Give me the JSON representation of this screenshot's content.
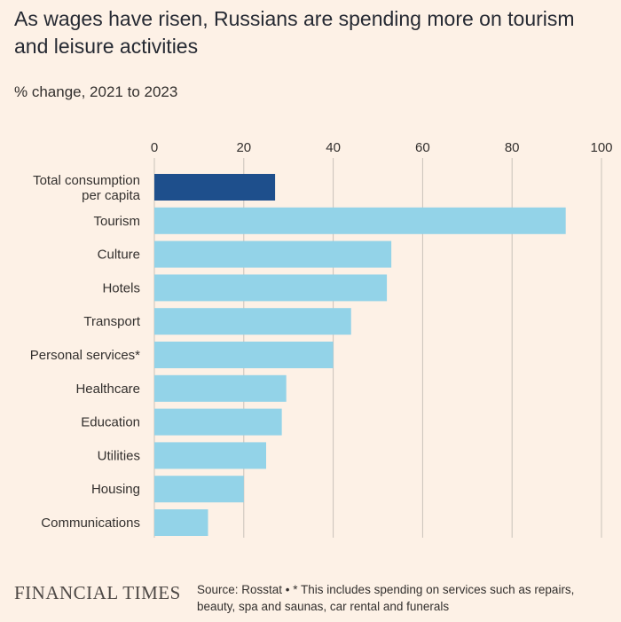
{
  "header": {
    "title": "As wages have risen, Russians are spending more on tourism and leisure activities",
    "subtitle": "% change, 2021 to 2023"
  },
  "footer": {
    "brand": "FINANCIAL TIMES",
    "source": "Source: Rosstat • * This includes spending on services such as repairs, beauty, spa and saunas, car rental and funerals"
  },
  "colors": {
    "highlight": "#1e4f8c",
    "bar": "#93d3e8",
    "grid": "#c9c2ba",
    "background": "#fdf1e6"
  },
  "chart_data": {
    "type": "bar",
    "orientation": "horizontal",
    "categories": [
      [
        "Total consumption",
        "per capita"
      ],
      [
        "Tourism"
      ],
      [
        "Culture"
      ],
      [
        "Hotels"
      ],
      [
        "Transport"
      ],
      [
        "Personal services*"
      ],
      [
        "Healthcare"
      ],
      [
        "Education"
      ],
      [
        "Utilities"
      ],
      [
        "Housing"
      ],
      [
        "Communications"
      ]
    ],
    "values": [
      27,
      92,
      53,
      52,
      44,
      40,
      29.5,
      28.5,
      25,
      20,
      12
    ],
    "highlight_index": 0,
    "xlim": [
      0,
      100
    ],
    "xticks": [
      "0",
      "20",
      "40",
      "60",
      "80",
      "100"
    ],
    "xaxis_position": "top",
    "grid": true
  }
}
